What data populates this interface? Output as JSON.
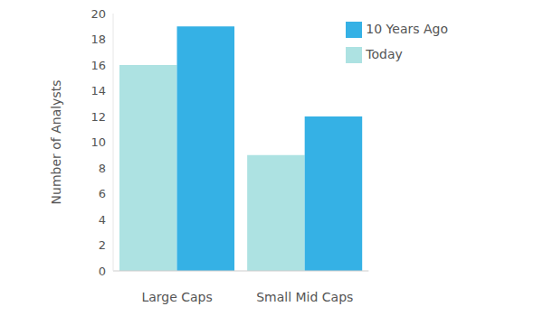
{
  "chart_data": {
    "type": "bar",
    "categories": [
      "Large Caps",
      "Small Mid Caps"
    ],
    "series": [
      {
        "name": "Today",
        "color": "#ade2e2",
        "values": [
          16,
          9
        ]
      },
      {
        "name": "10 Years Ago",
        "color": "#35b1e5",
        "values": [
          19,
          12
        ]
      }
    ],
    "y_label": "Number of Analysts",
    "ylim": [
      0,
      20
    ],
    "yticks": [
      0,
      2,
      4,
      6,
      8,
      10,
      12,
      14,
      16,
      18,
      20
    ],
    "grid": false,
    "legend": "upper right"
  }
}
